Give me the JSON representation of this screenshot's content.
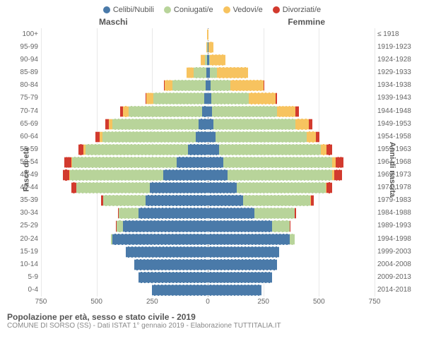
{
  "legend": [
    {
      "label": "Celibi/Nubili",
      "color": "#4a7aa9"
    },
    {
      "label": "Coniugati/e",
      "color": "#b8d49a"
    },
    {
      "label": "Vedovi/e",
      "color": "#f7c35f"
    },
    {
      "label": "Divorziati/e",
      "color": "#d23a2e"
    }
  ],
  "header_m": "Maschi",
  "header_f": "Femmine",
  "yaxis_left": "Fasce di età",
  "yaxis_right": "Anni di nascita",
  "xmax": 750,
  "xticks": [
    750,
    500,
    250,
    0,
    250,
    500,
    750
  ],
  "colors": {
    "single": "#4a7aa9",
    "married": "#b8d49a",
    "widowed": "#f7c35f",
    "divorced": "#d23a2e"
  },
  "footer_title": "Popolazione per età, sesso e stato civile - 2019",
  "footer_sub": "COMUNE DI SORSO (SS) - Dati ISTAT 1° gennaio 2019 - Elaborazione TUTTITALIA.IT",
  "rows": [
    {
      "age": "100+",
      "birth": "≤ 1918",
      "m": {
        "s": 0,
        "c": 0,
        "w": 2,
        "d": 0
      },
      "f": {
        "s": 0,
        "c": 0,
        "w": 3,
        "d": 0
      }
    },
    {
      "age": "95-99",
      "birth": "1919-1923",
      "m": {
        "s": 0,
        "c": 2,
        "w": 5,
        "d": 0
      },
      "f": {
        "s": 2,
        "c": 0,
        "w": 25,
        "d": 0
      }
    },
    {
      "age": "90-94",
      "birth": "1924-1928",
      "m": {
        "s": 2,
        "c": 12,
        "w": 18,
        "d": 0
      },
      "f": {
        "s": 5,
        "c": 5,
        "w": 70,
        "d": 0
      }
    },
    {
      "age": "85-89",
      "birth": "1929-1933",
      "m": {
        "s": 5,
        "c": 60,
        "w": 30,
        "d": 0
      },
      "f": {
        "s": 10,
        "c": 30,
        "w": 140,
        "d": 0
      }
    },
    {
      "age": "80-84",
      "birth": "1934-1938",
      "m": {
        "s": 10,
        "c": 150,
        "w": 35,
        "d": 3
      },
      "f": {
        "s": 12,
        "c": 90,
        "w": 150,
        "d": 3
      }
    },
    {
      "age": "75-79",
      "birth": "1939-1943",
      "m": {
        "s": 15,
        "c": 230,
        "w": 30,
        "d": 5
      },
      "f": {
        "s": 15,
        "c": 170,
        "w": 120,
        "d": 5
      }
    },
    {
      "age": "70-74",
      "birth": "1944-1948",
      "m": {
        "s": 25,
        "c": 330,
        "w": 25,
        "d": 15
      },
      "f": {
        "s": 20,
        "c": 290,
        "w": 85,
        "d": 15
      }
    },
    {
      "age": "65-69",
      "birth": "1949-1953",
      "m": {
        "s": 40,
        "c": 390,
        "w": 15,
        "d": 15
      },
      "f": {
        "s": 25,
        "c": 370,
        "w": 60,
        "d": 15
      }
    },
    {
      "age": "60-64",
      "birth": "1954-1958",
      "m": {
        "s": 55,
        "c": 420,
        "w": 10,
        "d": 20
      },
      "f": {
        "s": 35,
        "c": 410,
        "w": 40,
        "d": 18
      }
    },
    {
      "age": "55-59",
      "birth": "1959-1963",
      "m": {
        "s": 90,
        "c": 460,
        "w": 8,
        "d": 25
      },
      "f": {
        "s": 50,
        "c": 460,
        "w": 25,
        "d": 25
      }
    },
    {
      "age": "50-54",
      "birth": "1964-1968",
      "m": {
        "s": 140,
        "c": 470,
        "w": 5,
        "d": 30
      },
      "f": {
        "s": 70,
        "c": 490,
        "w": 15,
        "d": 35
      }
    },
    {
      "age": "45-49",
      "birth": "1969-1973",
      "m": {
        "s": 200,
        "c": 420,
        "w": 3,
        "d": 30
      },
      "f": {
        "s": 90,
        "c": 470,
        "w": 10,
        "d": 35
      }
    },
    {
      "age": "40-44",
      "birth": "1974-1978",
      "m": {
        "s": 260,
        "c": 330,
        "w": 2,
        "d": 20
      },
      "f": {
        "s": 130,
        "c": 400,
        "w": 5,
        "d": 25
      }
    },
    {
      "age": "35-39",
      "birth": "1979-1983",
      "m": {
        "s": 280,
        "c": 190,
        "w": 0,
        "d": 10
      },
      "f": {
        "s": 160,
        "c": 300,
        "w": 3,
        "d": 15
      }
    },
    {
      "age": "30-34",
      "birth": "1984-1988",
      "m": {
        "s": 310,
        "c": 90,
        "w": 0,
        "d": 5
      },
      "f": {
        "s": 210,
        "c": 180,
        "w": 0,
        "d": 8
      }
    },
    {
      "age": "25-29",
      "birth": "1989-1993",
      "m": {
        "s": 380,
        "c": 30,
        "w": 0,
        "d": 2
      },
      "f": {
        "s": 290,
        "c": 80,
        "w": 0,
        "d": 3
      }
    },
    {
      "age": "20-24",
      "birth": "1994-1998",
      "m": {
        "s": 430,
        "c": 5,
        "w": 0,
        "d": 0
      },
      "f": {
        "s": 370,
        "c": 20,
        "w": 0,
        "d": 0
      }
    },
    {
      "age": "15-19",
      "birth": "1999-2003",
      "m": {
        "s": 370,
        "c": 0,
        "w": 0,
        "d": 0
      },
      "f": {
        "s": 320,
        "c": 0,
        "w": 0,
        "d": 0
      }
    },
    {
      "age": "10-14",
      "birth": "2004-2008",
      "m": {
        "s": 330,
        "c": 0,
        "w": 0,
        "d": 0
      },
      "f": {
        "s": 310,
        "c": 0,
        "w": 0,
        "d": 0
      }
    },
    {
      "age": "5-9",
      "birth": "2009-2013",
      "m": {
        "s": 310,
        "c": 0,
        "w": 0,
        "d": 0
      },
      "f": {
        "s": 290,
        "c": 0,
        "w": 0,
        "d": 0
      }
    },
    {
      "age": "0-4",
      "birth": "2014-2018",
      "m": {
        "s": 250,
        "c": 0,
        "w": 0,
        "d": 0
      },
      "f": {
        "s": 240,
        "c": 0,
        "w": 0,
        "d": 0
      }
    }
  ]
}
